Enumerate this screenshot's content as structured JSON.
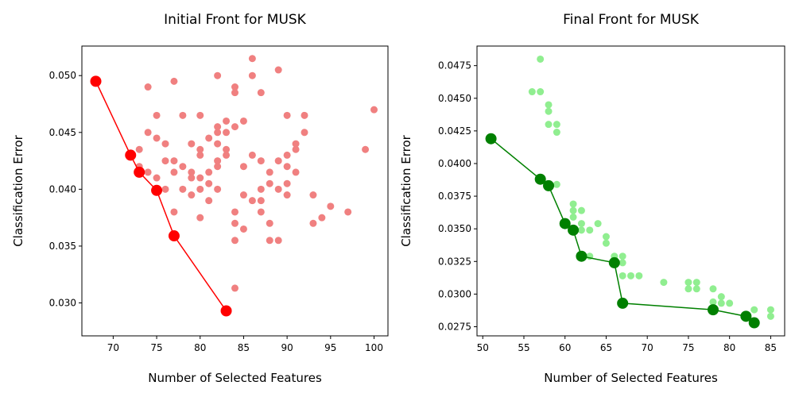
{
  "chart_data": [
    {
      "type": "scatter",
      "title": "Initial Front for MUSK",
      "xlabel": "Number of Selected Features",
      "ylabel": "Classification Error",
      "xlim": [
        66.4,
        101.6
      ],
      "ylim": [
        0.0271,
        0.0526
      ],
      "xticks": [
        70,
        75,
        80,
        85,
        90,
        95,
        100
      ],
      "yticks": [
        0.03,
        0.035,
        0.04,
        0.045,
        0.05
      ],
      "ytick_decimals": 3,
      "colors": {
        "population": "#f08080",
        "front": "#ff0000"
      },
      "series": [
        {
          "kind": "population",
          "points": [
            [
              68,
              0.0495
            ],
            [
              72,
              0.043
            ],
            [
              73,
              0.0435
            ],
            [
              73,
              0.042
            ],
            [
              73,
              0.0415
            ],
            [
              74,
              0.049
            ],
            [
              74,
              0.045
            ],
            [
              74,
              0.0415
            ],
            [
              75,
              0.0465
            ],
            [
              75,
              0.0445
            ],
            [
              75,
              0.041
            ],
            [
              76,
              0.044
            ],
            [
              76,
              0.0425
            ],
            [
              76,
              0.04
            ],
            [
              77,
              0.0495
            ],
            [
              77,
              0.0425
            ],
            [
              77,
              0.0415
            ],
            [
              77,
              0.038
            ],
            [
              78,
              0.0465
            ],
            [
              78,
              0.042
            ],
            [
              78,
              0.04
            ],
            [
              79,
              0.044
            ],
            [
              79,
              0.0415
            ],
            [
              79,
              0.041
            ],
            [
              79,
              0.0395
            ],
            [
              80,
              0.0465
            ],
            [
              80,
              0.0435
            ],
            [
              80,
              0.043
            ],
            [
              80,
              0.041
            ],
            [
              80,
              0.04
            ],
            [
              80,
              0.0375
            ],
            [
              81,
              0.0445
            ],
            [
              81,
              0.0415
            ],
            [
              81,
              0.0405
            ],
            [
              81,
              0.039
            ],
            [
              82,
              0.05
            ],
            [
              82,
              0.0455
            ],
            [
              82,
              0.045
            ],
            [
              82,
              0.044
            ],
            [
              82,
              0.0425
            ],
            [
              82,
              0.042
            ],
            [
              82,
              0.04
            ],
            [
              83,
              0.046
            ],
            [
              83,
              0.045
            ],
            [
              83,
              0.0435
            ],
            [
              83,
              0.043
            ],
            [
              84,
              0.049
            ],
            [
              84,
              0.0485
            ],
            [
              84,
              0.0455
            ],
            [
              84,
              0.038
            ],
            [
              84,
              0.037
            ],
            [
              84,
              0.0355
            ],
            [
              84,
              0.0313
            ],
            [
              85,
              0.046
            ],
            [
              85,
              0.042
            ],
            [
              85,
              0.0395
            ],
            [
              85,
              0.0365
            ],
            [
              86,
              0.0515
            ],
            [
              86,
              0.05
            ],
            [
              86,
              0.043
            ],
            [
              86,
              0.039
            ],
            [
              87,
              0.0485
            ],
            [
              87,
              0.0425
            ],
            [
              87,
              0.04
            ],
            [
              87,
              0.039
            ],
            [
              87,
              0.038
            ],
            [
              88,
              0.0415
            ],
            [
              88,
              0.0405
            ],
            [
              88,
              0.037
            ],
            [
              88,
              0.0355
            ],
            [
              89,
              0.0505
            ],
            [
              89,
              0.0425
            ],
            [
              89,
              0.04
            ],
            [
              89,
              0.0355
            ],
            [
              90,
              0.0465
            ],
            [
              90,
              0.043
            ],
            [
              90,
              0.042
            ],
            [
              90,
              0.0405
            ],
            [
              90,
              0.0395
            ],
            [
              91,
              0.044
            ],
            [
              91,
              0.0435
            ],
            [
              91,
              0.0415
            ],
            [
              92,
              0.0465
            ],
            [
              92,
              0.045
            ],
            [
              93,
              0.0395
            ],
            [
              93,
              0.037
            ],
            [
              94,
              0.0375
            ],
            [
              95,
              0.0385
            ],
            [
              97,
              0.038
            ],
            [
              99,
              0.0435
            ],
            [
              100,
              0.047
            ]
          ]
        },
        {
          "kind": "front",
          "points": [
            [
              68,
              0.0495
            ],
            [
              72,
              0.043
            ],
            [
              73,
              0.0415
            ],
            [
              75,
              0.0399
            ],
            [
              77,
              0.0359
            ],
            [
              83,
              0.0293
            ]
          ]
        }
      ]
    },
    {
      "type": "scatter",
      "title": "Final Front for MUSK",
      "xlabel": "Number of Selected Features",
      "ylabel": "Classification Error",
      "xlim": [
        49.3,
        86.7
      ],
      "ylim": [
        0.0268,
        0.049
      ],
      "xticks": [
        50,
        55,
        60,
        65,
        70,
        75,
        80,
        85
      ],
      "yticks": [
        0.0275,
        0.03,
        0.0325,
        0.035,
        0.0375,
        0.04,
        0.0425,
        0.045,
        0.0475
      ],
      "ytick_decimals": 4,
      "colors": {
        "population": "#90ee90",
        "front": "#008000"
      },
      "series": [
        {
          "kind": "population",
          "points": [
            [
              51,
              0.0419
            ],
            [
              56,
              0.0455
            ],
            [
              57,
              0.048
            ],
            [
              57,
              0.0455
            ],
            [
              57,
              0.0388
            ],
            [
              58,
              0.0445
            ],
            [
              58,
              0.044
            ],
            [
              58,
              0.043
            ],
            [
              58,
              0.0383
            ],
            [
              59,
              0.043
            ],
            [
              59,
              0.0424
            ],
            [
              59,
              0.0384
            ],
            [
              60,
              0.0354
            ],
            [
              61,
              0.0369
            ],
            [
              61,
              0.0364
            ],
            [
              61,
              0.0359
            ],
            [
              61,
              0.0349
            ],
            [
              62,
              0.0364
            ],
            [
              62,
              0.0354
            ],
            [
              62,
              0.0349
            ],
            [
              62,
              0.0329
            ],
            [
              63,
              0.0349
            ],
            [
              63,
              0.0329
            ],
            [
              64,
              0.0354
            ],
            [
              65,
              0.0344
            ],
            [
              65,
              0.0339
            ],
            [
              66,
              0.0329
            ],
            [
              66,
              0.0324
            ],
            [
              67,
              0.0329
            ],
            [
              67,
              0.0324
            ],
            [
              67,
              0.0314
            ],
            [
              68,
              0.0314
            ],
            [
              69,
              0.0314
            ],
            [
              72,
              0.0309
            ],
            [
              75,
              0.0309
            ],
            [
              75,
              0.0304
            ],
            [
              76,
              0.0309
            ],
            [
              76,
              0.0304
            ],
            [
              78,
              0.0304
            ],
            [
              78,
              0.0294
            ],
            [
              79,
              0.0298
            ],
            [
              79,
              0.0293
            ],
            [
              80,
              0.0293
            ],
            [
              82,
              0.0284
            ],
            [
              83,
              0.0288
            ],
            [
              85,
              0.0288
            ],
            [
              85,
              0.0283
            ]
          ]
        },
        {
          "kind": "front",
          "points": [
            [
              51,
              0.0419
            ],
            [
              57,
              0.0388
            ],
            [
              58,
              0.0383
            ],
            [
              60,
              0.0354
            ],
            [
              61,
              0.0349
            ],
            [
              62,
              0.0329
            ],
            [
              66,
              0.0324
            ],
            [
              67,
              0.0293
            ],
            [
              78,
              0.0288
            ],
            [
              82,
              0.0283
            ],
            [
              83,
              0.0278
            ]
          ]
        }
      ]
    }
  ]
}
